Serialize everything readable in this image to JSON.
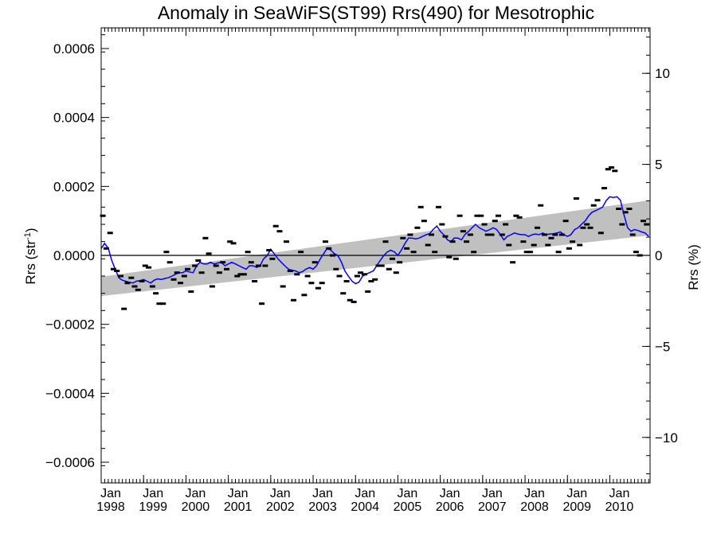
{
  "chart_data": {
    "type": "scatter",
    "title": "Anomaly in SeaWiFS(ST99) Rrs(490) for Mesotrophic",
    "ylabel": "Rrs (str",
    "ylabel_superscript": "-1",
    "ylabel_suffix": ")",
    "y2label": "Rrs (%)",
    "xlim": [
      1998.0,
      2010.95
    ],
    "ylim": [
      -0.00066,
      0.00066
    ],
    "y2lim": [
      -12.5,
      12.5
    ],
    "y_ticks": [
      {
        "value": -0.0006,
        "label": "−0.0006"
      },
      {
        "value": -0.0004,
        "label": "−0.0004"
      },
      {
        "value": -0.0002,
        "label": "−0.0002"
      },
      {
        "value": 0.0,
        "label": "0.0000"
      },
      {
        "value": 0.0002,
        "label": "0.0002"
      },
      {
        "value": 0.0004,
        "label": "0.0004"
      },
      {
        "value": 0.0006,
        "label": "0.0006"
      }
    ],
    "y2_ticks": [
      {
        "value": -10,
        "label": "−10"
      },
      {
        "value": -5,
        "label": "−5"
      },
      {
        "value": 0,
        "label": "0"
      },
      {
        "value": 5,
        "label": "5"
      },
      {
        "value": 10,
        "label": "10"
      }
    ],
    "x_ticks": [
      {
        "value": 1998,
        "month": "Jan",
        "year": "1998"
      },
      {
        "value": 1999,
        "month": "Jan",
        "year": "1999"
      },
      {
        "value": 2000,
        "month": "Jan",
        "year": "2000"
      },
      {
        "value": 2001,
        "month": "Jan",
        "year": "2001"
      },
      {
        "value": 2002,
        "month": "Jan",
        "year": "2002"
      },
      {
        "value": 2003,
        "month": "Jan",
        "year": "2003"
      },
      {
        "value": 2004,
        "month": "Jan",
        "year": "2004"
      },
      {
        "value": 2005,
        "month": "Jan",
        "year": "2005"
      },
      {
        "value": 2006,
        "month": "Jan",
        "year": "2006"
      },
      {
        "value": 2007,
        "month": "Jan",
        "year": "2007"
      },
      {
        "value": 2008,
        "month": "Jan",
        "year": "2008"
      },
      {
        "value": 2009,
        "month": "Jan",
        "year": "2009"
      },
      {
        "value": 2010,
        "month": "Jan",
        "year": "2010"
      }
    ],
    "trend_band": {
      "x": [
        1998.0,
        2010.95
      ],
      "lower": [
        -0.000118,
        5.8e-05
      ],
      "upper": [
        -6.2e-05,
        0.00016
      ],
      "color": "#c0c0c0"
    },
    "zero_line": 0.0,
    "monthly_points": {
      "color": "#000000",
      "x": [
        1998.04,
        1998.12,
        1998.21,
        1998.29,
        1998.37,
        1998.46,
        1998.54,
        1998.62,
        1998.71,
        1998.79,
        1998.87,
        1998.96,
        1999.04,
        1999.12,
        1999.21,
        1999.29,
        1999.37,
        1999.46,
        1999.54,
        1999.62,
        1999.71,
        1999.79,
        1999.87,
        1999.96,
        2000.04,
        2000.12,
        2000.21,
        2000.29,
        2000.37,
        2000.46,
        2000.54,
        2000.62,
        2000.71,
        2000.79,
        2000.87,
        2000.96,
        2001.04,
        2001.12,
        2001.21,
        2001.29,
        2001.37,
        2001.46,
        2001.54,
        2001.62,
        2001.71,
        2001.79,
        2001.87,
        2001.96,
        2002.04,
        2002.12,
        2002.21,
        2002.29,
        2002.37,
        2002.46,
        2002.54,
        2002.62,
        2002.71,
        2002.79,
        2002.87,
        2002.96,
        2003.04,
        2003.12,
        2003.21,
        2003.29,
        2003.37,
        2003.46,
        2003.54,
        2003.62,
        2003.71,
        2003.79,
        2003.87,
        2003.96,
        2004.04,
        2004.12,
        2004.21,
        2004.29,
        2004.37,
        2004.46,
        2004.54,
        2004.62,
        2004.71,
        2004.79,
        2004.87,
        2004.96,
        2005.04,
        2005.12,
        2005.21,
        2005.29,
        2005.37,
        2005.46,
        2005.54,
        2005.62,
        2005.71,
        2005.79,
        2005.87,
        2005.96,
        2006.04,
        2006.12,
        2006.21,
        2006.29,
        2006.37,
        2006.46,
        2006.54,
        2006.62,
        2006.71,
        2006.79,
        2006.87,
        2006.96,
        2007.04,
        2007.12,
        2007.21,
        2007.29,
        2007.37,
        2007.46,
        2007.54,
        2007.62,
        2007.71,
        2007.79,
        2007.87,
        2007.96,
        2008.04,
        2008.12,
        2008.21,
        2008.29,
        2008.37,
        2008.46,
        2008.54,
        2008.62,
        2008.71,
        2008.79,
        2008.87,
        2008.96,
        2009.04,
        2009.12,
        2009.21,
        2009.29,
        2009.37,
        2009.46,
        2009.54,
        2009.62,
        2009.71,
        2009.79,
        2009.87,
        2009.96,
        2010.04,
        2010.12,
        2010.21,
        2010.29,
        2010.37,
        2010.46,
        2010.54,
        2010.62,
        2010.71,
        2010.79,
        2010.87
      ],
      "y": [
        0.000115,
        2e-05,
        6.5e-05,
        -4e-05,
        -4.5e-05,
        -6e-05,
        -0.000155,
        -8e-05,
        -6.5e-05,
        -9e-05,
        -0.0001,
        -7.5e-05,
        -3e-05,
        -3.5e-05,
        -9e-05,
        -0.00011,
        -0.00014,
        -0.00014,
        1e-05,
        -2e-05,
        -7e-05,
        -5e-05,
        -8e-05,
        -6e-05,
        -4e-05,
        -0.000105,
        -3e-05,
        -1.5e-05,
        -5e-05,
        5e-05,
        5e-06,
        -9e-05,
        -3e-05,
        -5e-05,
        -2e-05,
        -4e-05,
        4e-05,
        3.5e-05,
        -6e-05,
        -5.5e-05,
        -5.5e-05,
        1e-05,
        -2e-05,
        -7.5e-05,
        -3e-05,
        -0.00014,
        -3e-05,
        1.5e-05,
        -1e-05,
        8.5e-05,
        7e-05,
        -9e-05,
        4e-05,
        -4.5e-05,
        -0.00013,
        -5.5e-05,
        1e-05,
        -0.000115,
        -6e-05,
        -8e-05,
        -2e-05,
        -9.5e-05,
        -8e-05,
        4e-05,
        2e-05,
        0.0,
        -4e-05,
        -6e-05,
        -0.00011,
        -7.5e-05,
        -0.00013,
        -0.000135,
        -6e-05,
        -5e-05,
        -5.5e-05,
        -0.000105,
        -7.5e-05,
        -7e-05,
        -3e-05,
        -3e-05,
        4e-05,
        -4e-05,
        -1e-05,
        -5e-05,
        -2e-05,
        5e-05,
        2e-05,
        6e-05,
        1e-05,
        8e-05,
        0.00014,
        0.0001,
        3e-05,
        6e-05,
        1e-05,
        0.00014,
        9e-05,
        5.5e-05,
        -5e-06,
        4e-05,
        -1e-05,
        0.000115,
        7e-05,
        4e-05,
        6e-05,
        1e-05,
        0.000115,
        0.000115,
        9e-05,
        6e-05,
        6e-05,
        0.0001,
        0.000115,
        6e-05,
        9e-05,
        3e-05,
        -2e-05,
        0.000115,
        0.00011,
        4e-05,
        1e-05,
        1e-05,
        3e-05,
        8e-05,
        0.000145,
        6e-05,
        3e-05,
        5e-05,
        6e-05,
        1e-05,
        6e-05,
        0.0001,
        2e-05,
        4e-05,
        0.000165,
        3e-05,
        8e-05,
        9e-05,
        8e-05,
        0.000145,
        0.00016,
        6.5e-05,
        0.000195,
        0.00025,
        0.000255,
        0.000245,
        0.000135,
        9e-05,
        0.000125,
        0.000135,
        6e-05,
        1e-05,
        0.0,
        0.0001,
        9e-05
      ]
    },
    "running_mean": {
      "color": "#0000ff",
      "x": [
        1998.0,
        1998.08,
        1998.17,
        1998.25,
        1998.33,
        1998.42,
        1998.5,
        1998.58,
        1998.67,
        1998.75,
        1998.83,
        1998.92,
        1999.0,
        1999.08,
        1999.17,
        1999.25,
        1999.33,
        1999.42,
        1999.5,
        1999.58,
        1999.67,
        1999.75,
        1999.83,
        1999.92,
        2000.0,
        2000.08,
        2000.17,
        2000.25,
        2000.33,
        2000.42,
        2000.5,
        2000.58,
        2000.67,
        2000.75,
        2000.83,
        2000.92,
        2001.0,
        2001.08,
        2001.17,
        2001.25,
        2001.33,
        2001.42,
        2001.5,
        2001.58,
        2001.67,
        2001.75,
        2001.83,
        2001.92,
        2002.0,
        2002.08,
        2002.17,
        2002.25,
        2002.33,
        2002.42,
        2002.5,
        2002.58,
        2002.67,
        2002.75,
        2002.83,
        2002.92,
        2003.0,
        2003.08,
        2003.17,
        2003.25,
        2003.33,
        2003.42,
        2003.5,
        2003.58,
        2003.67,
        2003.75,
        2003.83,
        2003.92,
        2004.0,
        2004.08,
        2004.17,
        2004.25,
        2004.33,
        2004.42,
        2004.5,
        2004.58,
        2004.67,
        2004.75,
        2004.83,
        2004.92,
        2005.0,
        2005.08,
        2005.17,
        2005.25,
        2005.33,
        2005.42,
        2005.5,
        2005.58,
        2005.67,
        2005.75,
        2005.83,
        2005.92,
        2006.0,
        2006.08,
        2006.17,
        2006.25,
        2006.33,
        2006.42,
        2006.5,
        2006.58,
        2006.67,
        2006.75,
        2006.83,
        2006.92,
        2007.0,
        2007.08,
        2007.17,
        2007.25,
        2007.33,
        2007.42,
        2007.5,
        2007.58,
        2007.67,
        2007.75,
        2007.83,
        2007.92,
        2008.0,
        2008.08,
        2008.17,
        2008.25,
        2008.33,
        2008.42,
        2008.5,
        2008.58,
        2008.67,
        2008.75,
        2008.83,
        2008.92,
        2009.0,
        2009.08,
        2009.17,
        2009.25,
        2009.33,
        2009.42,
        2009.5,
        2009.58,
        2009.67,
        2009.75,
        2009.83,
        2009.92,
        2010.0,
        2010.08,
        2010.17,
        2010.25,
        2010.33,
        2010.42,
        2010.5,
        2010.58,
        2010.67,
        2010.75,
        2010.83,
        2010.92
      ],
      "y": [
        2e-05,
        3.5e-05,
        2e-05,
        -1.5e-05,
        -4e-05,
        -6.5e-05,
        -7.2e-05,
        -7.5e-05,
        -7.8e-05,
        -8e-05,
        -7.5e-05,
        -7.3e-05,
        -7e-05,
        -7.5e-05,
        -8e-05,
        -7.2e-05,
        -6.8e-05,
        -7e-05,
        -6.7e-05,
        -6.5e-05,
        -6e-05,
        -5.5e-05,
        -5e-05,
        -5e-05,
        -4.5e-05,
        -4.8e-05,
        -5e-05,
        -3e-05,
        -2e-05,
        -2.5e-05,
        -2.5e-05,
        -2e-05,
        -2.5e-05,
        -2.2e-05,
        -2e-05,
        -3e-05,
        -2.5e-05,
        -2e-05,
        -2.5e-05,
        -3e-05,
        -3.5e-05,
        -4e-05,
        -3e-05,
        -3e-05,
        -3.5e-05,
        -3e-05,
        -1e-05,
        0.0,
        1.8e-05,
        5e-06,
        -1e-05,
        -2e-05,
        -3e-05,
        -4e-05,
        -4.3e-05,
        -4.5e-05,
        -5e-05,
        -4.7e-05,
        -4e-05,
        -3.5e-05,
        -4e-05,
        -3e-05,
        -1e-05,
        5e-06,
        2e-05,
        1.5e-05,
        5e-06,
        0.0,
        -2e-05,
        -4.5e-05,
        -6e-05,
        -7.5e-05,
        -8.2e-05,
        -7.8e-05,
        -6e-05,
        -5.5e-05,
        -5e-05,
        -4.5e-05,
        -3e-05,
        -1.5e-05,
        0.0,
        1e-05,
        1.5e-05,
        1e-05,
        0.0,
        1.5e-05,
        3.5e-05,
        5e-05,
        5e-05,
        4.8e-05,
        5e-05,
        5.5e-05,
        6e-05,
        6.3e-05,
        7.5e-05,
        8.5e-05,
        7e-05,
        6e-05,
        4.5e-05,
        4e-05,
        5e-05,
        5e-05,
        4.5e-05,
        6e-05,
        7e-05,
        8e-05,
        9e-05,
        8e-05,
        7.5e-05,
        7e-05,
        7.5e-05,
        8e-05,
        7.5e-05,
        6e-05,
        4.5e-05,
        5.5e-05,
        6e-05,
        6.5e-05,
        6.2e-05,
        6e-05,
        6e-05,
        5.5e-05,
        6e-05,
        6.2e-05,
        6e-05,
        6.5e-05,
        6e-05,
        6.2e-05,
        6.3e-05,
        6.5e-05,
        6.8e-05,
        6e-05,
        5.5e-05,
        6e-05,
        7.5e-05,
        8e-05,
        9e-05,
        0.0001,
        0.000115,
        0.000125,
        0.00013,
        0.000135,
        0.00014,
        0.00016,
        0.00017,
        0.000168,
        0.00017,
        0.00016,
        0.00012,
        8e-05,
        7e-05,
        7.5e-05,
        7.2e-05,
        6.8e-05,
        6.5e-05,
        5.5e-05
      ]
    }
  }
}
